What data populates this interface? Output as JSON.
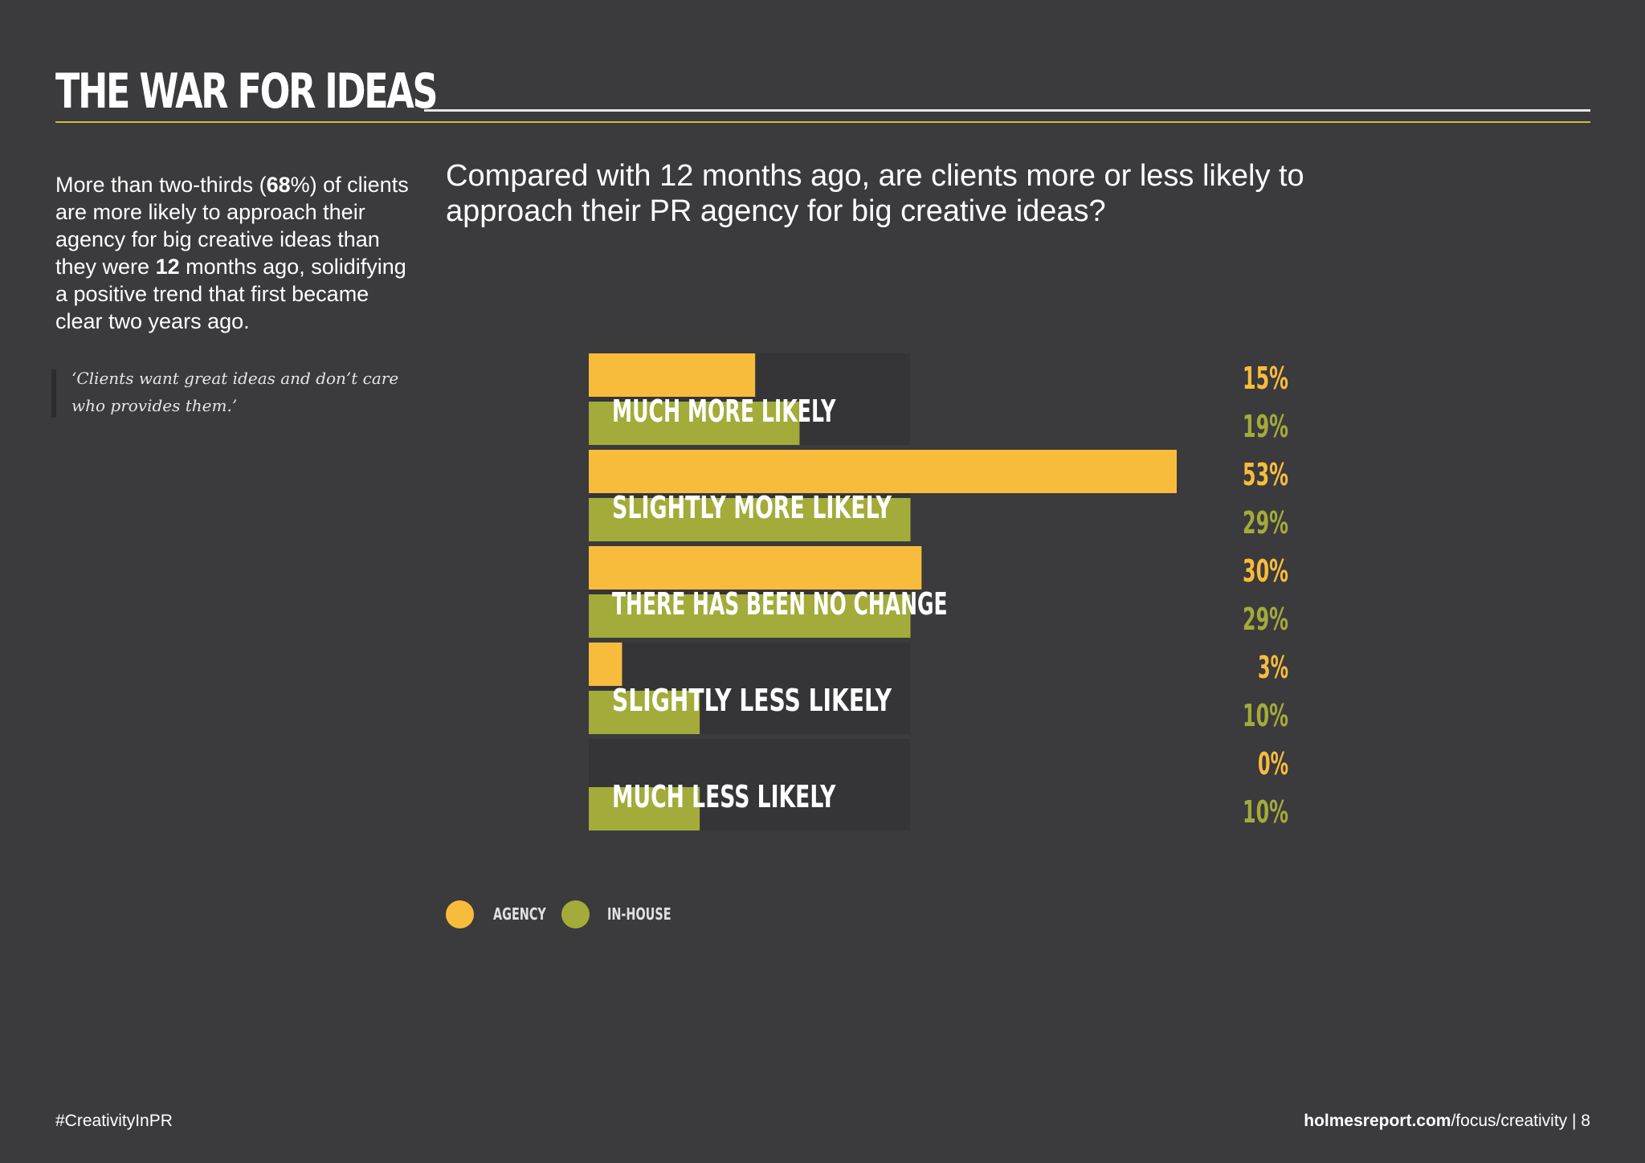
{
  "header": {
    "title": "THE WAR FOR IDEAS"
  },
  "intro": {
    "p1": "More than two-thirds (",
    "num1": "68",
    "p2": "%) of clients are more likely to approach their agency for big creative ideas than they were ",
    "num2": "12",
    "p3": " months ago, solidifying a positive trend that first became clear two years ago."
  },
  "quote": "‘Clients want great ideas and don’t care who provides them.’",
  "colors": {
    "agency": "#f8bc3c",
    "inhouse": "#a3ab3a",
    "track": "#353537"
  },
  "chart_data": {
    "type": "bar",
    "orientation": "horizontal",
    "title": "Compared with 12 months ago, are clients more or less likely to approach their PR agency for big creative ideas?",
    "categories": [
      "MUCH MORE LIKELY",
      "SLIGHTLY MORE LIKELY",
      "THERE HAS BEEN NO CHANGE",
      "SLIGHTLY LESS LIKELY",
      "MUCH LESS LIKELY"
    ],
    "series": [
      {
        "name": "AGENCY",
        "values": [
          15,
          53,
          30,
          3,
          0
        ],
        "labels": [
          "15%",
          "53%",
          "30%",
          "3%",
          "0%"
        ]
      },
      {
        "name": "IN-HOUSE",
        "values": [
          19,
          29,
          29,
          10,
          10
        ],
        "labels": [
          "19%",
          "29%",
          "29%",
          "10%",
          "10%"
        ]
      }
    ],
    "xlim": [
      0,
      53
    ],
    "legend": "bottom-left",
    "grid": false
  },
  "footer": {
    "hashtag": "#CreativityInPR",
    "site": "holmesreport.com",
    "path": "/focus/creativity",
    "page": " | 8"
  }
}
